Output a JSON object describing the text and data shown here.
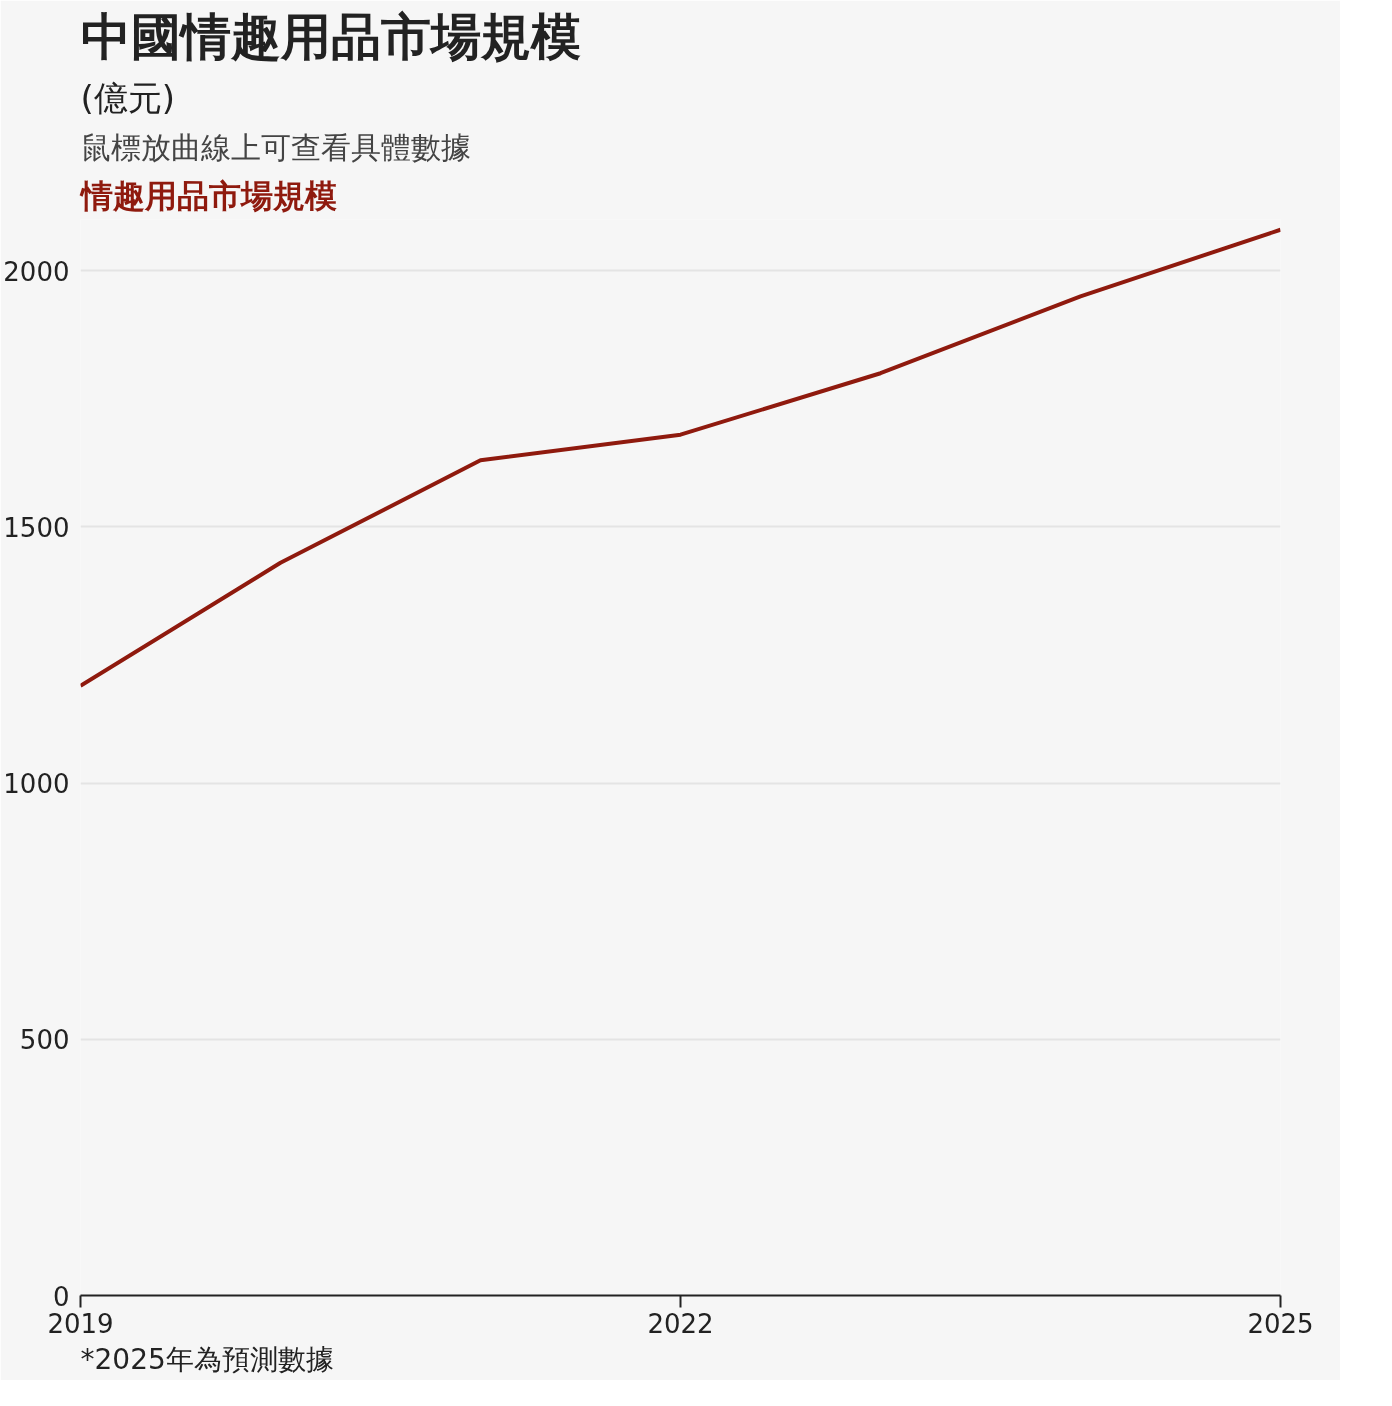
{
  "chart_data": {
    "type": "line",
    "title": "中國情趣用品市場規模",
    "ylabel": "(億元)",
    "subtitle": "鼠標放曲線上可查看具體數據",
    "x": [
      2019,
      2020,
      2021,
      2022,
      2023,
      2024,
      2025
    ],
    "series": [
      {
        "name": "情趣用品市場規模",
        "color": "#8f1a0e",
        "values": [
          1190,
          1430,
          1630,
          1680,
          1800,
          1950,
          2080
        ]
      }
    ],
    "xlim": [
      2019,
      2025
    ],
    "xticks": [
      2019,
      2022,
      2025
    ],
    "ylim": [
      0,
      2100
    ],
    "yticks": [
      0,
      500,
      1000,
      1500,
      2000
    ],
    "grid": "y",
    "marker": "none",
    "line_style": "solid",
    "annotations": [
      "*2025年為預測數據"
    ]
  }
}
